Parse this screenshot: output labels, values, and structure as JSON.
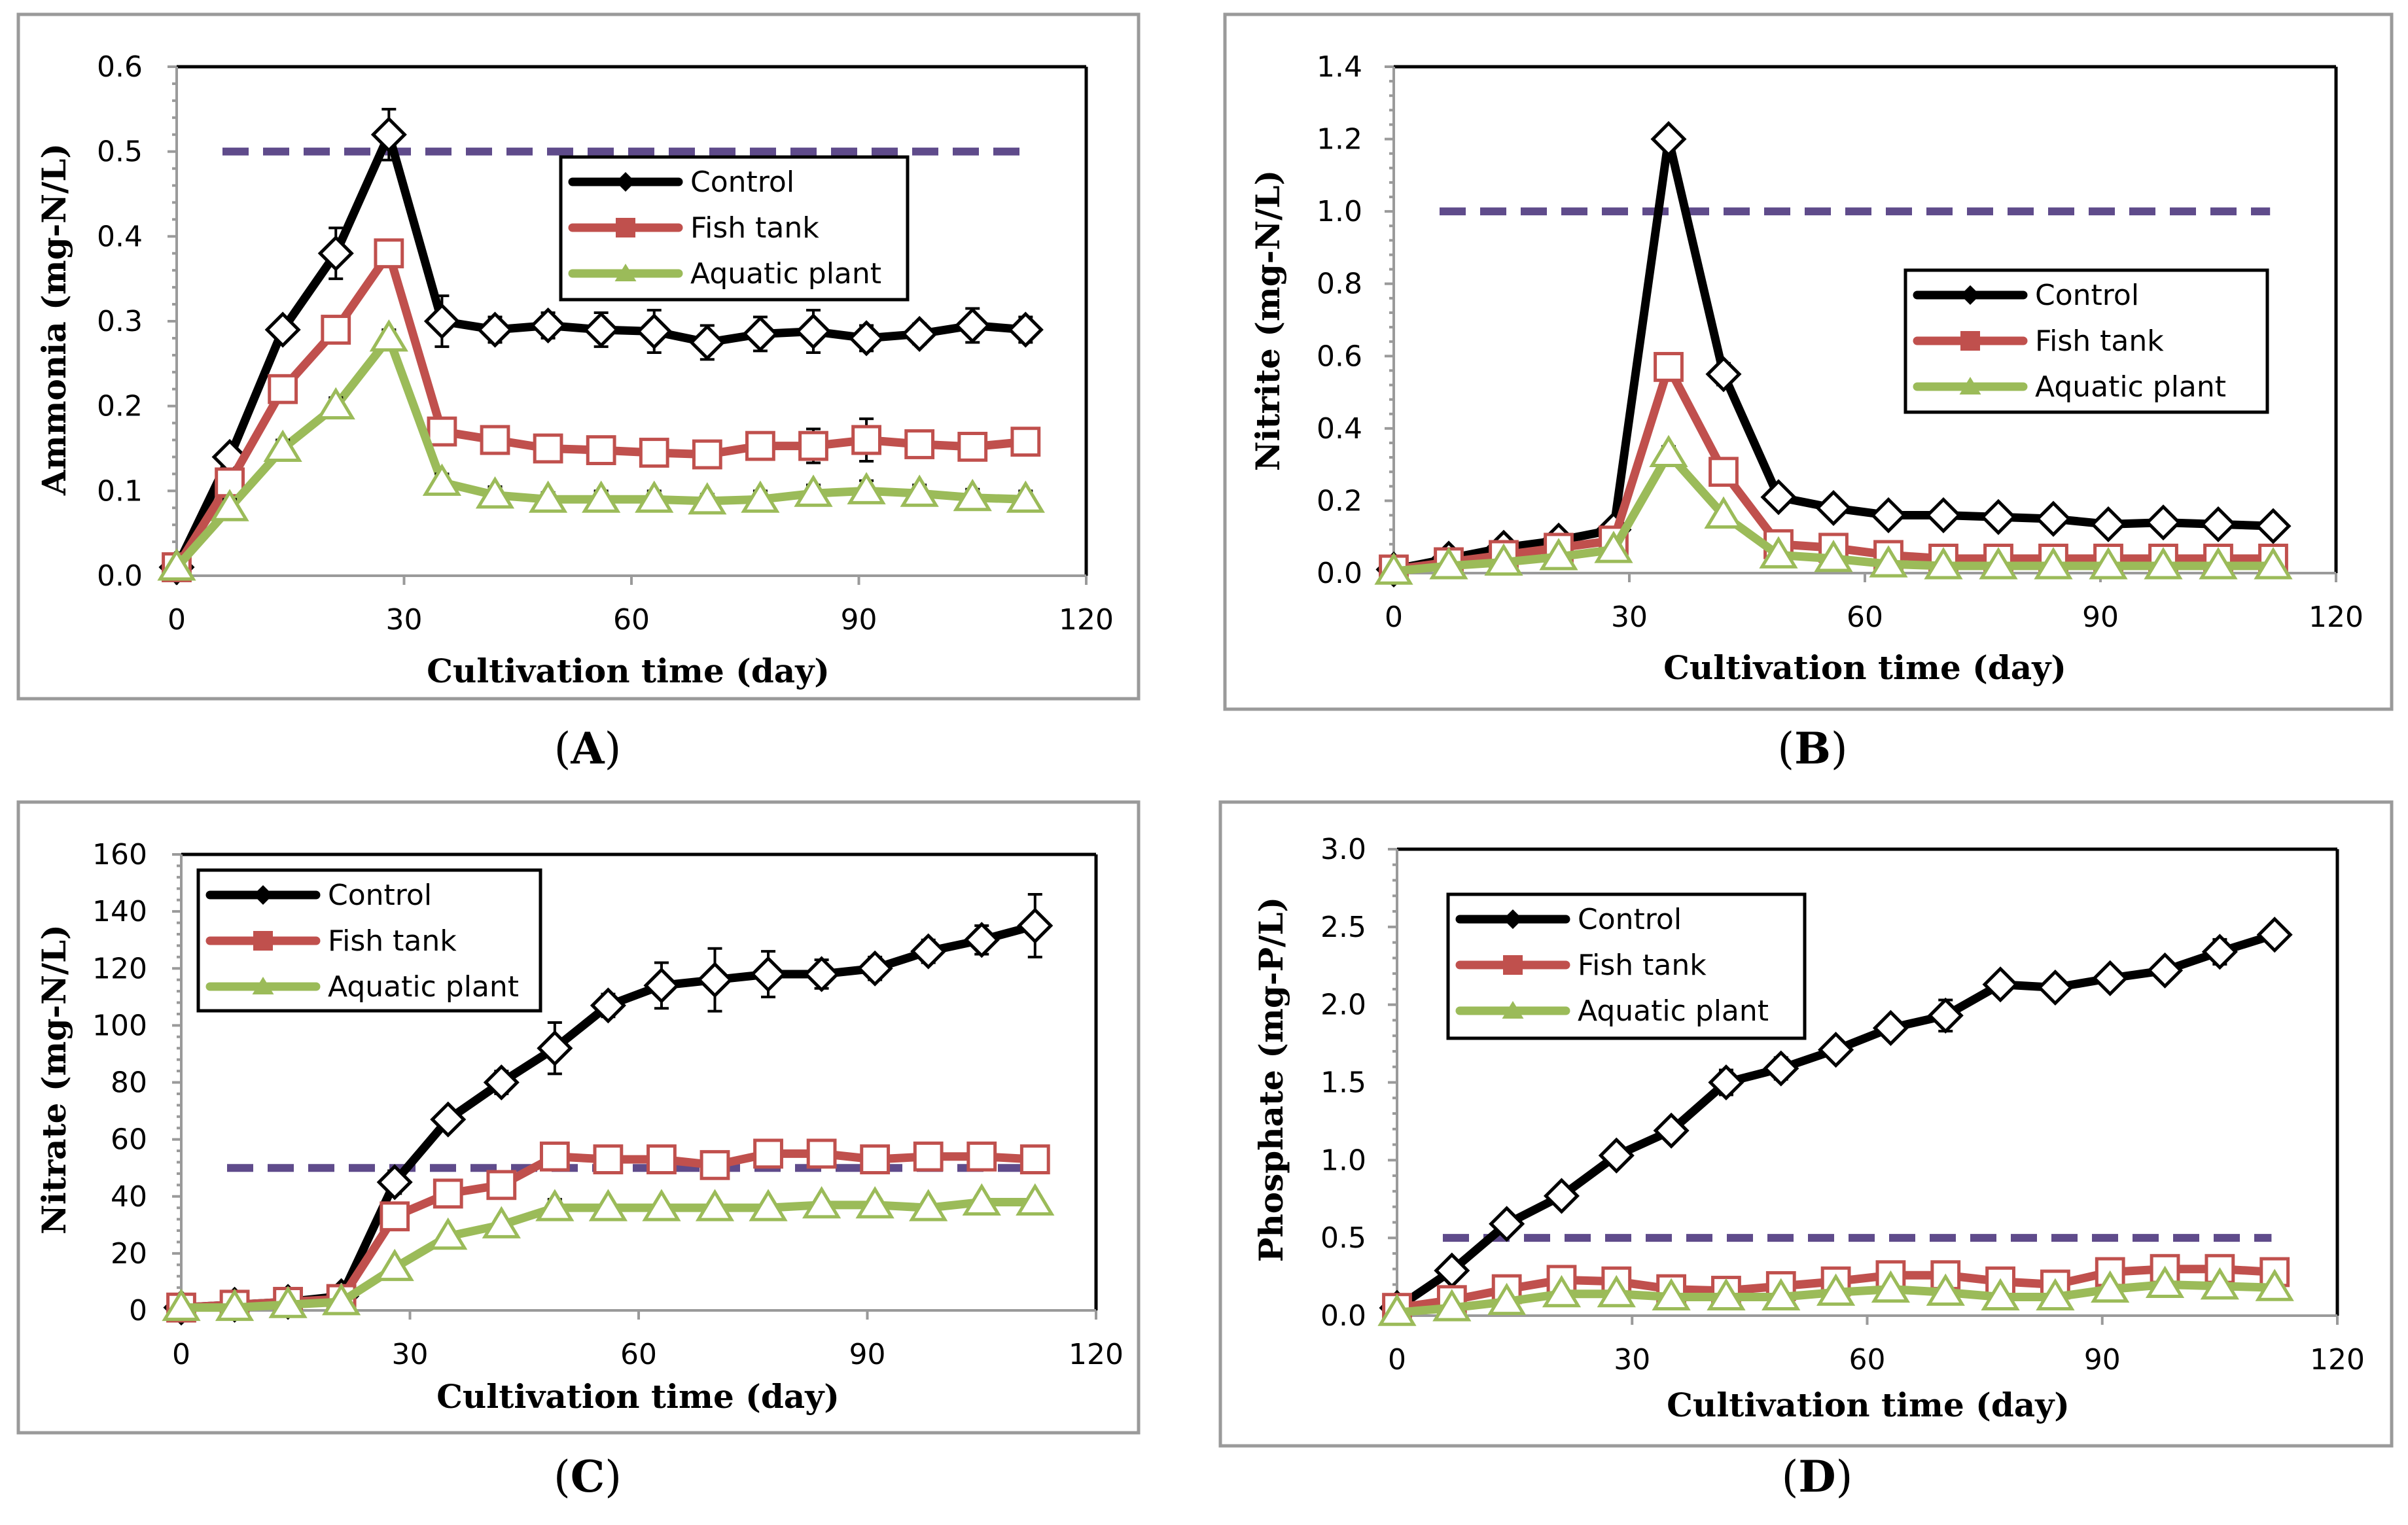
{
  "colors": {
    "control": "#000000",
    "fish_tank": "#c0504d",
    "aquatic_plant": "#9bbb59",
    "reference": "#5f4b8b"
  },
  "chart_data": [
    {
      "type": "line",
      "panel_label": "A",
      "ylabel": "Ammonia (mg-N/L)",
      "xlabel": "Cultivation time (day)",
      "xlim": [
        0,
        120
      ],
      "ylim": [
        0,
        0.6
      ],
      "x_ticks": [
        0,
        30,
        60,
        90,
        120
      ],
      "y_ticks": [
        0,
        0.1,
        0.2,
        0.3,
        0.4,
        0.5,
        0.6
      ],
      "y_tick_labels": [
        "0.0",
        "0.1",
        "0.2",
        "0.3",
        "0.4",
        "0.5",
        "0.6"
      ],
      "reference_line": 0.5,
      "legend_position": "top-right",
      "x": [
        0,
        7,
        14,
        21,
        28,
        35,
        42,
        49,
        56,
        63,
        70,
        77,
        84,
        91,
        98,
        105,
        112
      ],
      "series": [
        {
          "name": "Control",
          "marker": "diamond",
          "values": [
            0.01,
            0.14,
            0.29,
            0.38,
            0.52,
            0.3,
            0.29,
            0.295,
            0.29,
            0.288,
            0.275,
            0.285,
            0.288,
            0.28,
            0.285,
            0.295,
            0.29
          ],
          "errors": [
            0.005,
            0.01,
            0.01,
            0.03,
            0.03,
            0.03,
            0.015,
            0.015,
            0.02,
            0.025,
            0.02,
            0.02,
            0.025,
            0.015,
            0.012,
            0.02,
            0.015
          ]
        },
        {
          "name": "Fish tank",
          "marker": "square",
          "values": [
            0.01,
            0.11,
            0.22,
            0.29,
            0.38,
            0.17,
            0.16,
            0.15,
            0.148,
            0.145,
            0.143,
            0.153,
            0.153,
            0.16,
            0.155,
            0.152,
            0.158
          ],
          "errors": [
            0.005,
            0.01,
            0.01,
            0.01,
            0.01,
            0.01,
            0.015,
            0.01,
            0.015,
            0.015,
            0.01,
            0.015,
            0.02,
            0.025,
            0.015,
            0.01,
            0.01
          ]
        },
        {
          "name": "Aquatic plant",
          "marker": "triangle",
          "values": [
            0.01,
            0.08,
            0.15,
            0.2,
            0.28,
            0.11,
            0.095,
            0.09,
            0.09,
            0.09,
            0.088,
            0.09,
            0.097,
            0.1,
            0.097,
            0.092,
            0.09
          ],
          "errors": [
            0.005,
            0.01,
            0.01,
            0.01,
            0.01,
            0.01,
            0.01,
            0.008,
            0.01,
            0.01,
            0.008,
            0.01,
            0.01,
            0.012,
            0.01,
            0.01,
            0.01
          ]
        }
      ]
    },
    {
      "type": "line",
      "panel_label": "B",
      "ylabel": "Nitrite (mg-N/L)",
      "xlabel": "Cultivation time (day)",
      "xlim": [
        0,
        120
      ],
      "ylim": [
        0,
        1.4
      ],
      "x_ticks": [
        0,
        30,
        60,
        90,
        120
      ],
      "y_ticks": [
        0,
        0.2,
        0.4,
        0.6,
        0.8,
        1.0,
        1.2,
        1.4
      ],
      "y_tick_labels": [
        "0.0",
        "0.2",
        "0.4",
        "0.6",
        "0.8",
        "1.0",
        "1.2",
        "1.4"
      ],
      "reference_line": 1.0,
      "legend_position": "middle-right",
      "x": [
        0,
        7,
        14,
        21,
        28,
        35,
        42,
        49,
        56,
        63,
        70,
        77,
        84,
        91,
        98,
        105,
        112
      ],
      "series": [
        {
          "name": "Control",
          "marker": "diamond",
          "values": [
            0.01,
            0.04,
            0.07,
            0.09,
            0.12,
            1.2,
            0.55,
            0.21,
            0.18,
            0.16,
            0.16,
            0.155,
            0.15,
            0.135,
            0.14,
            0.135,
            0.13
          ],
          "errors": [
            0.005,
            0.005,
            0.005,
            0.01,
            0.01,
            0.02,
            0.03,
            0.02,
            0.01,
            0.02,
            0.02,
            0.01,
            0.01,
            0.01,
            0.01,
            0.01,
            0.01
          ]
        },
        {
          "name": "Fish tank",
          "marker": "square",
          "values": [
            0.01,
            0.03,
            0.05,
            0.07,
            0.09,
            0.57,
            0.28,
            0.08,
            0.07,
            0.05,
            0.04,
            0.04,
            0.04,
            0.04,
            0.04,
            0.04,
            0.04
          ],
          "errors": [
            0.005,
            0.005,
            0.005,
            0.005,
            0.01,
            0.03,
            0.02,
            0.01,
            0.01,
            0.01,
            0.005,
            0.005,
            0.005,
            0.005,
            0.005,
            0.005,
            0.005
          ]
        },
        {
          "name": "Aquatic plant",
          "marker": "triangle",
          "values": [
            0.005,
            0.02,
            0.03,
            0.045,
            0.065,
            0.33,
            0.16,
            0.05,
            0.04,
            0.025,
            0.02,
            0.02,
            0.02,
            0.02,
            0.02,
            0.02,
            0.02
          ],
          "errors": [
            0.005,
            0.005,
            0.005,
            0.005,
            0.01,
            0.02,
            0.015,
            0.01,
            0.005,
            0.005,
            0.005,
            0.005,
            0.005,
            0.005,
            0.005,
            0.005,
            0.005
          ]
        }
      ]
    },
    {
      "type": "line",
      "panel_label": "C",
      "ylabel": "Nitrate (mg-N/L)",
      "xlabel": "Cultivation time (day)",
      "xlim": [
        0,
        120
      ],
      "ylim": [
        0,
        160
      ],
      "x_ticks": [
        0,
        30,
        60,
        90,
        120
      ],
      "y_ticks": [
        0,
        20,
        40,
        60,
        80,
        100,
        120,
        140,
        160
      ],
      "y_tick_labels": [
        "0",
        "20",
        "40",
        "60",
        "80",
        "100",
        "120",
        "140",
        "160"
      ],
      "reference_line": 50,
      "legend_position": "top-left",
      "x": [
        0,
        7,
        14,
        21,
        28,
        35,
        42,
        49,
        56,
        63,
        70,
        77,
        84,
        91,
        98,
        105,
        112
      ],
      "series": [
        {
          "name": "Control",
          "marker": "diamond",
          "values": [
            1,
            2,
            3,
            5,
            45,
            67,
            80,
            92,
            107,
            114,
            116,
            118,
            118,
            120,
            126,
            130,
            135
          ],
          "errors": [
            0.5,
            0.5,
            1,
            1,
            4,
            3,
            4,
            9,
            4,
            8,
            11,
            8,
            5,
            4,
            4,
            5,
            11
          ]
        },
        {
          "name": "Fish tank",
          "marker": "square",
          "values": [
            1,
            2,
            3,
            4,
            33,
            41,
            44,
            54,
            53,
            53,
            51,
            55,
            55,
            53,
            54,
            54,
            53
          ],
          "errors": [
            0.5,
            0.5,
            1,
            1,
            4,
            3,
            3,
            4,
            4,
            4,
            3,
            4,
            4,
            3,
            3,
            3,
            3
          ]
        },
        {
          "name": "Aquatic plant",
          "marker": "triangle",
          "values": [
            1,
            1,
            2,
            3,
            15,
            26,
            30,
            36,
            36,
            36,
            36,
            36,
            37,
            37,
            36,
            38,
            38
          ],
          "errors": [
            0.5,
            0.5,
            1,
            1,
            2,
            2,
            2,
            3,
            2,
            2,
            2,
            2,
            2,
            2,
            2,
            2,
            2
          ]
        }
      ]
    },
    {
      "type": "line",
      "panel_label": "D",
      "ylabel": "Phosphate (mg-P/L)",
      "xlabel": "Cultivation time (day)",
      "xlim": [
        0,
        120
      ],
      "ylim": [
        0,
        3.0
      ],
      "x_ticks": [
        0,
        30,
        60,
        90,
        120
      ],
      "y_ticks": [
        0,
        0.5,
        1.0,
        1.5,
        2.0,
        2.5,
        3.0
      ],
      "y_tick_labels": [
        "0.0",
        "0.5",
        "1.0",
        "1.5",
        "2.0",
        "2.5",
        "3.0"
      ],
      "reference_line": 0.5,
      "legend_position": "top-left",
      "x": [
        0,
        7,
        14,
        21,
        28,
        35,
        42,
        49,
        56,
        63,
        70,
        77,
        84,
        91,
        98,
        105,
        112
      ],
      "series": [
        {
          "name": "Control",
          "marker": "diamond",
          "values": [
            0.05,
            0.29,
            0.59,
            0.77,
            1.03,
            1.19,
            1.5,
            1.59,
            1.71,
            1.85,
            1.93,
            2.13,
            2.11,
            2.17,
            2.22,
            2.34,
            2.45
          ],
          "errors": [
            0.02,
            0.03,
            0.04,
            0.05,
            0.05,
            0.06,
            0.08,
            0.07,
            0.05,
            0.05,
            0.1,
            0.06,
            0.06,
            0.05,
            0.06,
            0.08,
            0.04
          ]
        },
        {
          "name": "Fish tank",
          "marker": "square",
          "values": [
            0.05,
            0.1,
            0.17,
            0.23,
            0.22,
            0.17,
            0.16,
            0.19,
            0.22,
            0.26,
            0.26,
            0.22,
            0.2,
            0.28,
            0.3,
            0.3,
            0.28
          ],
          "errors": [
            0.02,
            0.02,
            0.03,
            0.03,
            0.03,
            0.03,
            0.03,
            0.03,
            0.03,
            0.03,
            0.03,
            0.03,
            0.03,
            0.03,
            0.03,
            0.03,
            0.03
          ]
        },
        {
          "name": "Aquatic plant",
          "marker": "triangle",
          "values": [
            0.02,
            0.05,
            0.09,
            0.14,
            0.14,
            0.12,
            0.12,
            0.12,
            0.15,
            0.17,
            0.15,
            0.12,
            0.12,
            0.17,
            0.2,
            0.19,
            0.18
          ],
          "errors": [
            0.01,
            0.02,
            0.02,
            0.02,
            0.02,
            0.02,
            0.02,
            0.02,
            0.02,
            0.02,
            0.02,
            0.02,
            0.02,
            0.02,
            0.02,
            0.02,
            0.02
          ]
        }
      ]
    }
  ]
}
